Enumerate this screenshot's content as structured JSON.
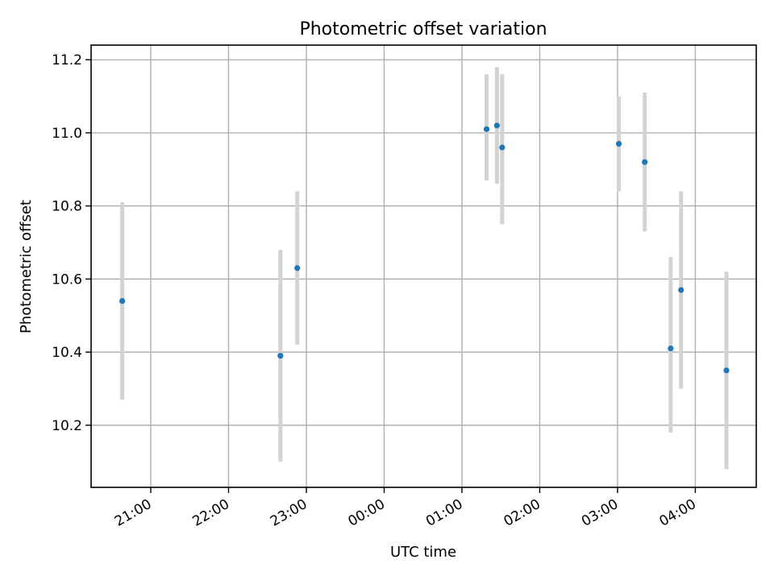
{
  "chart_data": {
    "type": "scatter",
    "title": "Photometric offset variation",
    "xlabel": "UTC time",
    "ylabel": "Photometric offset",
    "x_axis_type": "time",
    "x_ticks": [
      "21:00",
      "22:00",
      "23:00",
      "00:00",
      "01:00",
      "02:00",
      "03:00",
      "04:00"
    ],
    "y_ticks": [
      "10.2",
      "10.4",
      "10.6",
      "10.8",
      "11.0",
      "11.2"
    ],
    "xlim": [
      "20:14",
      "04:47"
    ],
    "ylim": [
      10.03,
      11.24
    ],
    "grid": true,
    "legend": "none",
    "marker_color": "#1f77b4",
    "errorbar_color": "#d3d3d3",
    "points": [
      {
        "x": "20:38",
        "y": 10.54,
        "yerr_low": 10.27,
        "yerr_high": 10.81
      },
      {
        "x": "22:40",
        "y": 10.39,
        "yerr_low": 10.1,
        "yerr_high": 10.68
      },
      {
        "x": "22:53",
        "y": 10.63,
        "yerr_low": 10.42,
        "yerr_high": 10.84
      },
      {
        "x": "01:19",
        "y": 11.01,
        "yerr_low": 10.87,
        "yerr_high": 11.16
      },
      {
        "x": "01:27",
        "y": 11.02,
        "yerr_low": 10.86,
        "yerr_high": 11.18
      },
      {
        "x": "01:31",
        "y": 10.96,
        "yerr_low": 10.75,
        "yerr_high": 11.16
      },
      {
        "x": "03:01",
        "y": 10.97,
        "yerr_low": 10.84,
        "yerr_high": 11.1
      },
      {
        "x": "03:21",
        "y": 10.92,
        "yerr_low": 10.73,
        "yerr_high": 11.11
      },
      {
        "x": "03:41",
        "y": 10.41,
        "yerr_low": 10.18,
        "yerr_high": 10.66
      },
      {
        "x": "03:49",
        "y": 10.57,
        "yerr_low": 10.3,
        "yerr_high": 10.84
      },
      {
        "x": "04:24",
        "y": 10.35,
        "yerr_low": 10.08,
        "yerr_high": 10.62
      }
    ]
  }
}
